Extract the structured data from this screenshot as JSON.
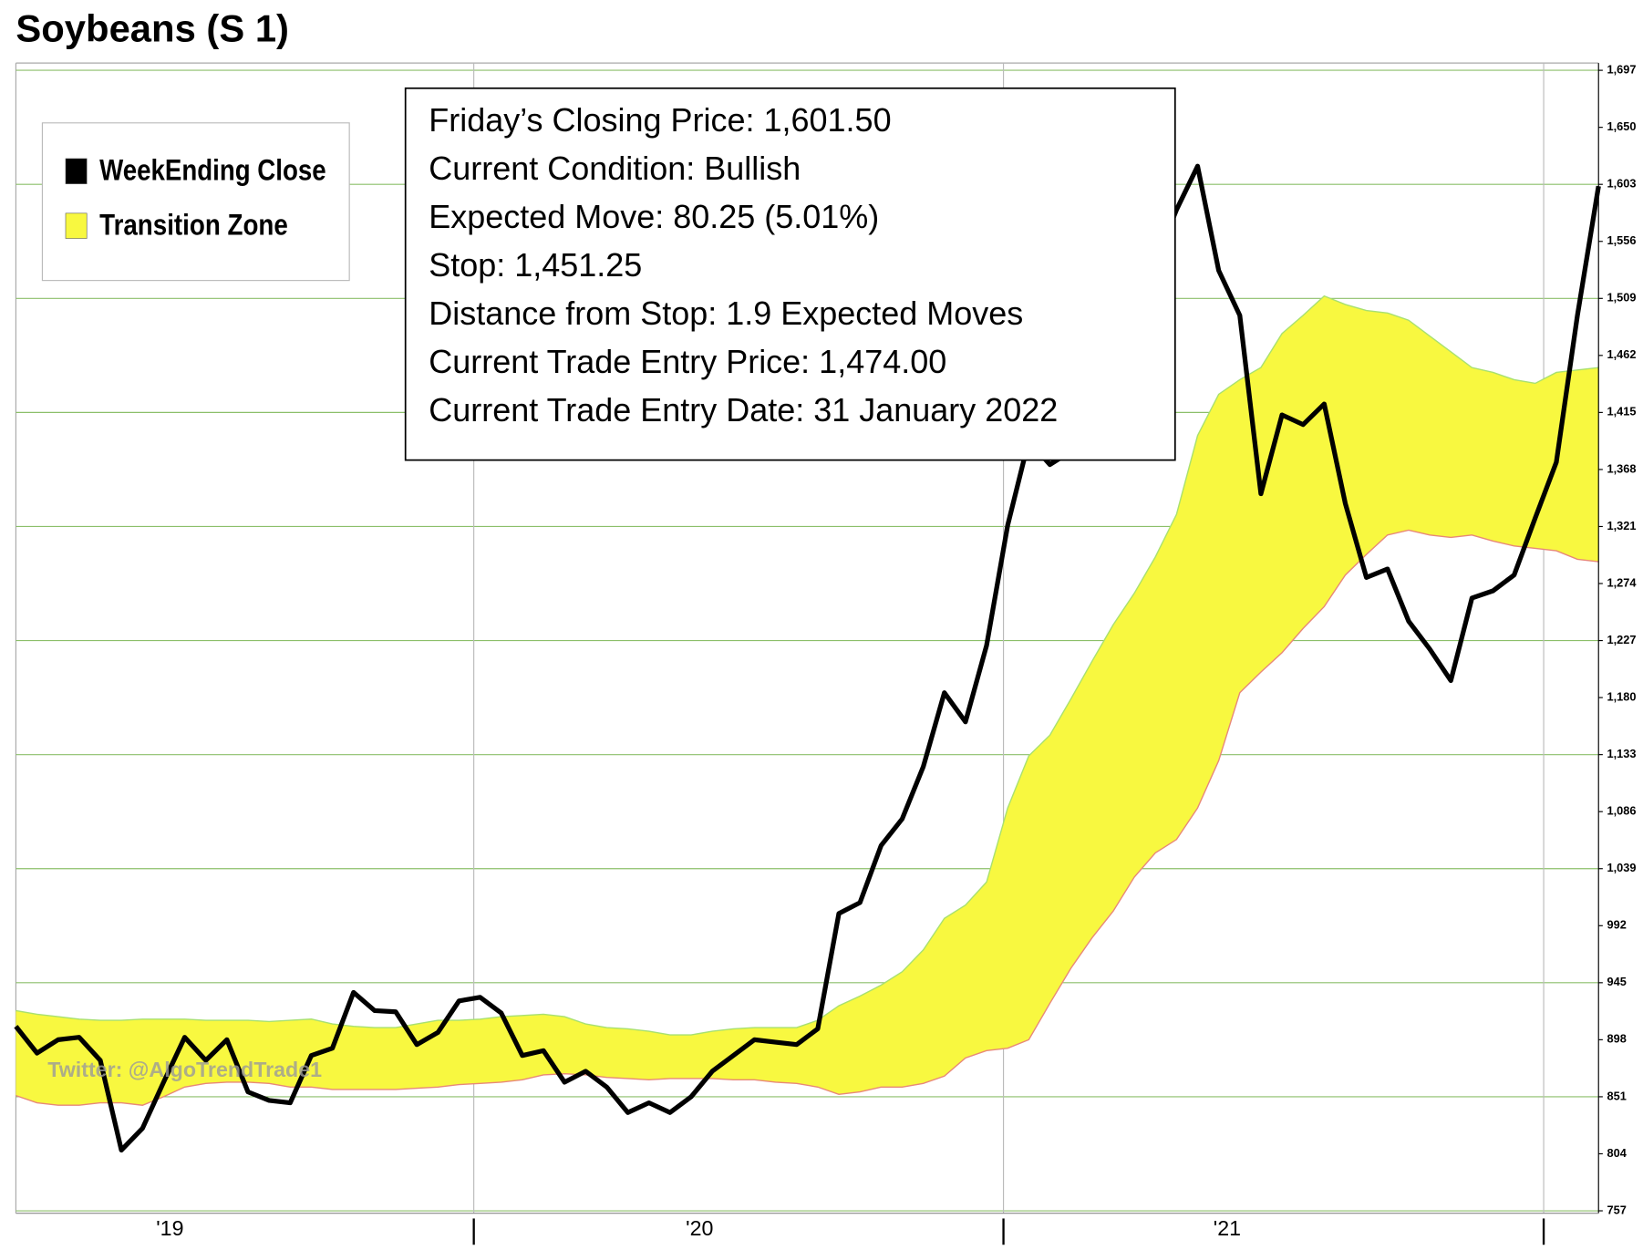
{
  "chart_data": {
    "type": "line",
    "title": "Soybeans (S 1)",
    "watermark": "Twitter: @AlgoTrendTrade1",
    "annotations": [
      "Friday’s Closing Price: 1,601.50",
      "Current Condition: Bullish",
      "Expected Move: 80.25 (5.01%)",
      "Stop: 1,451.25",
      "Distance from Stop: 1.9 Expected Moves",
      "Current Trade Entry Price: 1,474.00",
      "Current Trade Entry Date: 31 January 2022"
    ],
    "legend": "top-left",
    "grid": true,
    "xlim": [
      0,
      75
    ],
    "xticks": [
      {
        "value": 7.3,
        "label": "'19"
      },
      {
        "value": 21.7,
        "label": null
      },
      {
        "value": 32.4,
        "label": "'20"
      },
      {
        "value": 46.8,
        "label": null
      },
      {
        "value": 57.4,
        "label": "'21"
      },
      {
        "value": 72.4,
        "label": null
      }
    ],
    "ylim": [
      755,
      1703
    ],
    "yticks": [
      757,
      804,
      851,
      898,
      945,
      992,
      {
        "value": 1039,
        "label": "1,039"
      },
      {
        "value": 1086,
        "label": "1,086"
      },
      {
        "value": 1133,
        "label": "1,133"
      },
      {
        "value": 1180,
        "label": "1,180"
      },
      {
        "value": 1227,
        "label": "1,227"
      },
      {
        "value": 1274,
        "label": "1,274"
      },
      {
        "value": 1321,
        "label": "1,321"
      },
      {
        "value": 1368,
        "label": "1,368"
      },
      {
        "value": 1415,
        "label": "1,415"
      },
      {
        "value": 1462,
        "label": "1,462"
      },
      {
        "value": 1509,
        "label": "1,509"
      },
      {
        "value": 1556,
        "label": "1,556"
      },
      {
        "value": 1603,
        "label": "1,603"
      },
      {
        "value": 1650,
        "label": "1,650"
      },
      {
        "value": 1697,
        "label": "1,697"
      }
    ],
    "series": [
      {
        "name": "WeekEnding Close",
        "color": "#000000",
        "values": [
          909,
          887,
          898,
          900,
          881,
          807,
          825,
          863,
          900,
          881,
          898,
          855,
          848,
          846,
          885,
          891,
          937,
          922,
          921,
          894,
          904,
          930,
          933,
          920,
          885,
          889,
          863,
          872,
          859,
          838,
          846,
          838,
          851,
          872,
          885,
          898,
          896,
          894,
          907,
          1002,
          1011,
          1058,
          1080,
          1123,
          1184,
          1160,
          1223,
          1322,
          1392,
          1372,
          1383,
          1417,
          1443,
          1478,
          1539,
          1582,
          1618,
          1532,
          1495,
          1348,
          1413,
          1405,
          1422,
          1340,
          1279,
          1286,
          1243,
          1220,
          1194,
          1262,
          1268,
          1281,
          1328,
          1374,
          1495,
          1601.5
        ]
      },
      {
        "name": "Transition Zone",
        "color": "#f8f840",
        "upper_color": "#a8e070",
        "lower_color": "#e88878",
        "upper": [
          922,
          919,
          917,
          915,
          914,
          914,
          915,
          915,
          915,
          914,
          914,
          914,
          913,
          914,
          915,
          911,
          909,
          908,
          908,
          911,
          914,
          914,
          915,
          917,
          918,
          919,
          917,
          911,
          908,
          907,
          905,
          902,
          902,
          905,
          907,
          908,
          908,
          908,
          914,
          926,
          934,
          943,
          954,
          972,
          998,
          1009,
          1028,
          1089,
          1132,
          1149,
          1179,
          1210,
          1240,
          1266,
          1296,
          1331,
          1396,
          1430,
          1442,
          1452,
          1480,
          1495,
          1511,
          1504,
          1499,
          1497,
          1491,
          1478,
          1465,
          1452,
          1448,
          1442,
          1439,
          1448,
          1450,
          1452
        ],
        "lower": [
          852,
          846,
          844,
          844,
          846,
          846,
          844,
          851,
          859,
          862,
          863,
          863,
          862,
          859,
          859,
          857,
          857,
          857,
          857,
          858,
          859,
          861,
          862,
          863,
          865,
          869,
          870,
          869,
          867,
          866,
          865,
          866,
          866,
          866,
          865,
          865,
          863,
          862,
          859,
          853,
          855,
          859,
          859,
          862,
          868,
          883,
          889,
          891,
          898,
          928,
          957,
          982,
          1004,
          1032,
          1052,
          1063,
          1089,
          1128,
          1184,
          1201,
          1217,
          1237,
          1255,
          1281,
          1298,
          1314,
          1318,
          1314,
          1312,
          1314,
          1309,
          1305,
          1303,
          1301,
          1294,
          1292
        ]
      }
    ]
  }
}
